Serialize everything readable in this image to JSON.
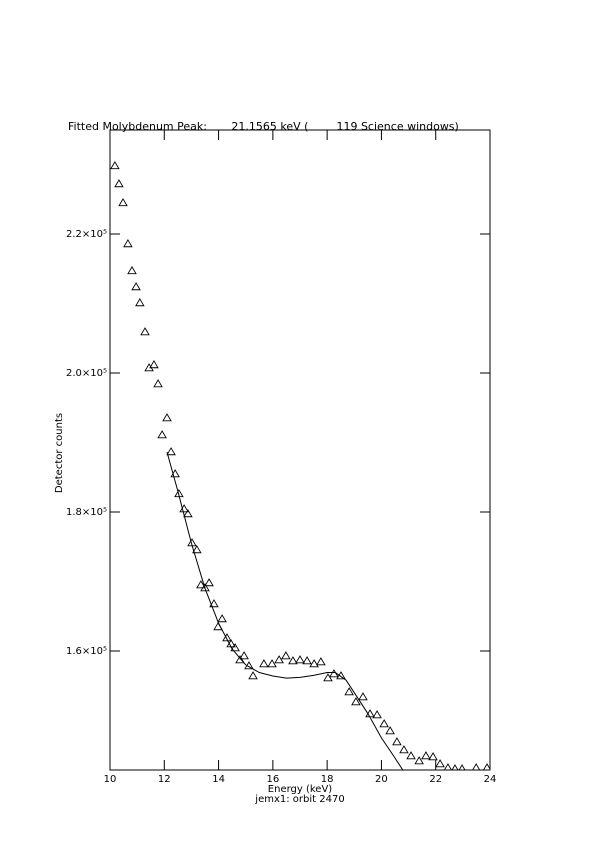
{
  "chart_data": {
    "type": "scatter",
    "title": "Fitted Molybdenum Peak:       21.1565 keV (        119 Science windows)",
    "x_label": "Energy (keV)",
    "subtitle": "jemx1: orbit 2470",
    "y_label": "Detector counts",
    "xlim": [
      10,
      24
    ],
    "xticks": [
      10,
      12,
      14,
      16,
      18,
      20,
      22,
      24
    ],
    "ylim": [
      142878,
      234964
    ],
    "yticks": [
      {
        "value": 160000,
        "label": "1.6×10⁵"
      },
      {
        "value": 180000,
        "label": "1.8×10⁵"
      },
      {
        "value": 200000,
        "label": "2.0×10⁵"
      },
      {
        "value": 220000,
        "label": "2.2×10⁵"
      }
    ],
    "series": [
      {
        "name": "data",
        "kind": "scatter",
        "color": "#000000",
        "x": [
          10.18,
          10.33,
          10.48,
          10.66,
          10.81,
          10.96,
          11.1,
          11.29,
          11.44,
          11.62,
          11.77,
          11.92,
          12.1,
          12.25,
          12.4,
          12.54,
          12.73,
          12.87,
          13.02,
          13.2,
          13.35,
          13.5,
          13.65,
          13.83,
          13.98,
          14.13,
          14.31,
          14.46,
          14.61,
          14.79,
          14.94,
          15.12,
          15.27,
          15.67,
          15.97,
          16.23,
          16.48,
          16.74,
          17.0,
          17.26,
          17.52,
          17.77,
          18.03,
          18.25,
          18.51,
          18.81,
          19.06,
          19.32,
          19.58,
          19.84,
          20.1,
          20.32,
          20.57,
          20.83,
          21.09,
          21.39,
          21.64,
          21.9,
          22.16,
          22.45,
          22.71,
          22.97,
          23.49,
          23.89
        ],
        "values": [
          229800,
          227200,
          224470,
          218570,
          214690,
          212380,
          210080,
          205900,
          200720,
          201160,
          198420,
          191080,
          193530,
          188640,
          185470,
          182600,
          180430,
          179720,
          175540,
          174540,
          169500,
          169070,
          169790,
          166770,
          163460,
          164610,
          161870,
          161010,
          160430,
          158710,
          159280,
          157840,
          156400,
          158130,
          158130,
          158710,
          159280,
          158560,
          158710,
          158560,
          158130,
          158420,
          156120,
          156690,
          156400,
          154100,
          152660,
          153380,
          150930,
          150790,
          149500,
          148490,
          146910,
          145760,
          144890,
          144170,
          144890,
          144750,
          143740,
          143170,
          143020,
          143020,
          143170,
          143170
        ]
      },
      {
        "name": "fit",
        "kind": "line",
        "color": "#000000",
        "x": [
          12.1,
          12.5,
          13,
          13.5,
          14,
          14.5,
          15,
          15.5,
          16,
          16.5,
          17,
          17.5,
          18,
          18.3,
          18.7,
          19,
          19.5,
          20,
          20.5,
          20.85
        ],
        "values": [
          188640,
          183000,
          175500,
          169000,
          164000,
          160300,
          158000,
          156900,
          156400,
          156100,
          156200,
          156500,
          156900,
          156900,
          155800,
          154000,
          151000,
          147500,
          144600,
          142500
        ]
      }
    ]
  }
}
